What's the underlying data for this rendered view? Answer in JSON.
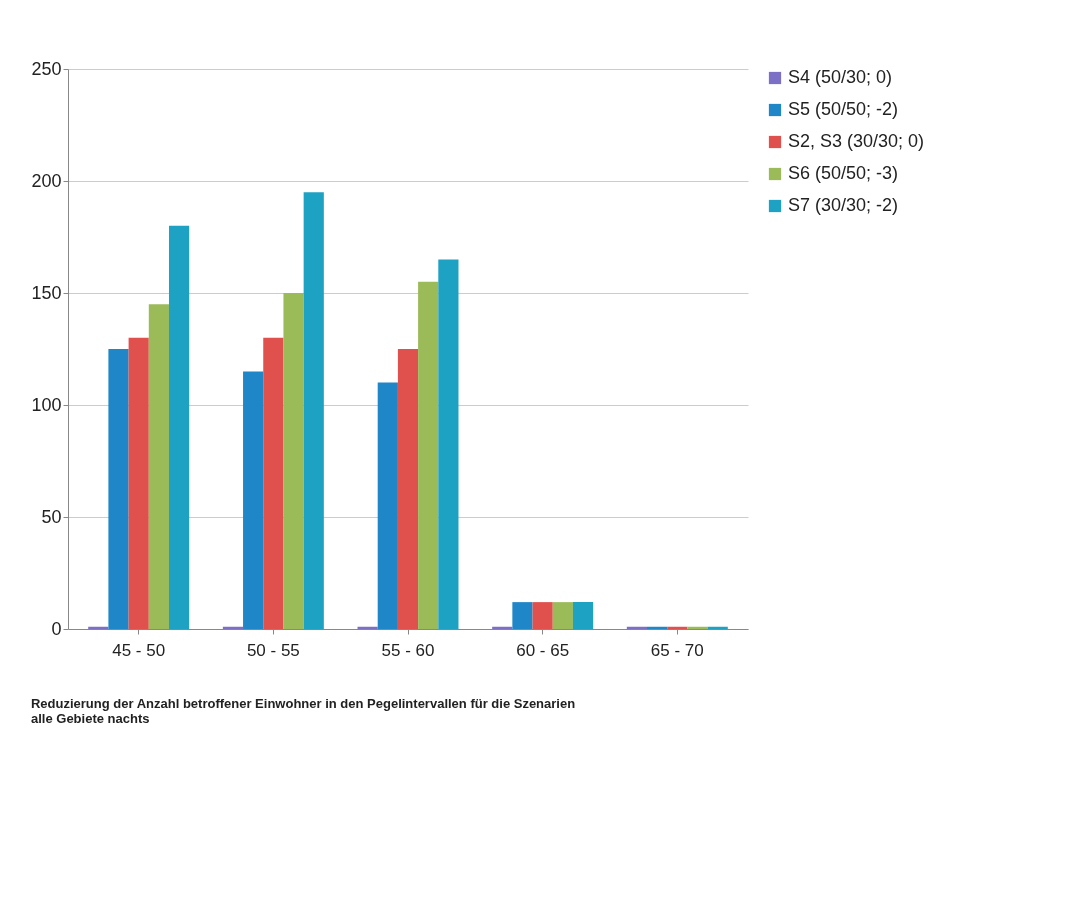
{
  "chart_data": {
    "type": "bar",
    "categories": [
      "45 - 50",
      "50 - 55",
      "55 - 60",
      "60 - 65",
      "65 - 70"
    ],
    "series": [
      {
        "name": "S4 (50/30; 0)",
        "color": "#7b6fc6",
        "values": [
          1,
          1,
          1,
          1,
          1
        ]
      },
      {
        "name": "S5 (50/50; -2)",
        "color": "#1f86c8",
        "values": [
          125,
          115,
          110,
          12,
          1
        ]
      },
      {
        "name": "S2, S3 (30/30; 0)",
        "color": "#e0504d",
        "values": [
          130,
          130,
          125,
          12,
          1
        ]
      },
      {
        "name": "S6 (50/50; -3)",
        "color": "#9bbb59",
        "values": [
          145,
          150,
          155,
          12,
          1
        ]
      },
      {
        "name": "S7 (30/30; -2)",
        "color": "#1ea2c4",
        "values": [
          180,
          195,
          165,
          12,
          1
        ]
      }
    ],
    "ylim": [
      0,
      250
    ],
    "yticks": [
      0,
      50,
      100,
      150,
      200,
      250
    ],
    "grid": "y",
    "legend": "right",
    "annotations": [
      "Reduzierung der Anzahl betroffener Einwohner in den Pegelintervallen für die Szenarien",
      "alle Gebiete nachts"
    ]
  }
}
